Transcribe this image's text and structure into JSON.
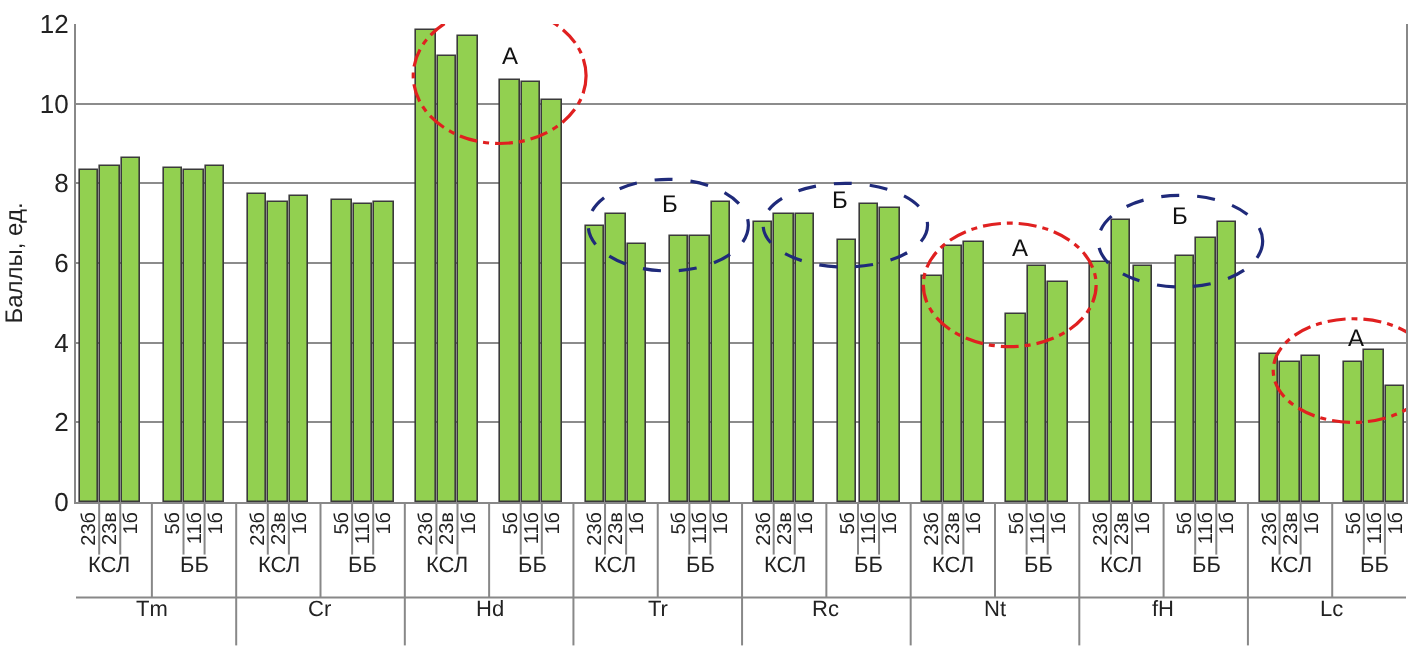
{
  "chart_data": {
    "type": "bar",
    "ylabel": "Баллы, ед.",
    "categories": [
      "23б",
      "23в",
      "1б",
      "5б",
      "11б",
      "1б",
      "23б",
      "23в",
      "1б",
      "5б",
      "11б",
      "1б",
      "23б",
      "23в",
      "1б",
      "5б",
      "11б",
      "1б",
      "23б",
      "23в",
      "1б",
      "5б",
      "11б",
      "1б",
      "23б",
      "23в",
      "1б",
      "5б",
      "11б",
      "1б",
      "23б",
      "23в",
      "1б",
      "5б",
      "11б",
      "1б",
      "23б",
      "23в",
      "1б",
      "5б",
      "11б",
      "1б",
      "23б",
      "23в",
      "1б",
      "5б",
      "11б",
      "1б"
    ],
    "series": [
      {
        "color": "#92d050",
        "values": [
          8.35,
          8.45,
          8.65,
          8.4,
          8.35,
          8.45,
          7.75,
          7.55,
          7.7,
          7.6,
          7.5,
          7.55,
          11.85,
          11.2,
          11.7,
          10.6,
          10.55,
          10.1,
          6.95,
          7.25,
          6.5,
          6.7,
          6.7,
          7.55,
          7.05,
          7.25,
          7.25,
          6.6,
          7.5,
          7.4,
          5.65,
          6.45,
          6.55,
          4.7,
          5.95,
          5.5,
          6.05,
          7.1,
          5.95,
          6.2,
          6.65,
          7.05,
          3.7,
          3.5,
          3.65,
          3.5,
          3.8,
          2.9
        ]
      }
    ],
    "ylim": [
      0,
      12
    ],
    "yticks": [
      0,
      2,
      4,
      6,
      8,
      10,
      12
    ],
    "grid": "y",
    "legend": false,
    "annotations": [
      "Tm",
      "Cr",
      "Hd",
      "Tr",
      "Rc",
      "Nt",
      "fH",
      "Lc",
      "КСЛ",
      "ББ",
      "КСЛ",
      "ББ",
      "КСЛ",
      "ББ",
      "КСЛ",
      "ББ",
      "КСЛ",
      "ББ",
      "КСЛ",
      "ББ",
      "КСЛ",
      "ББ",
      "КСЛ",
      "ББ",
      "А",
      "Б",
      "Б",
      "А",
      "Б",
      "А"
    ]
  }
}
